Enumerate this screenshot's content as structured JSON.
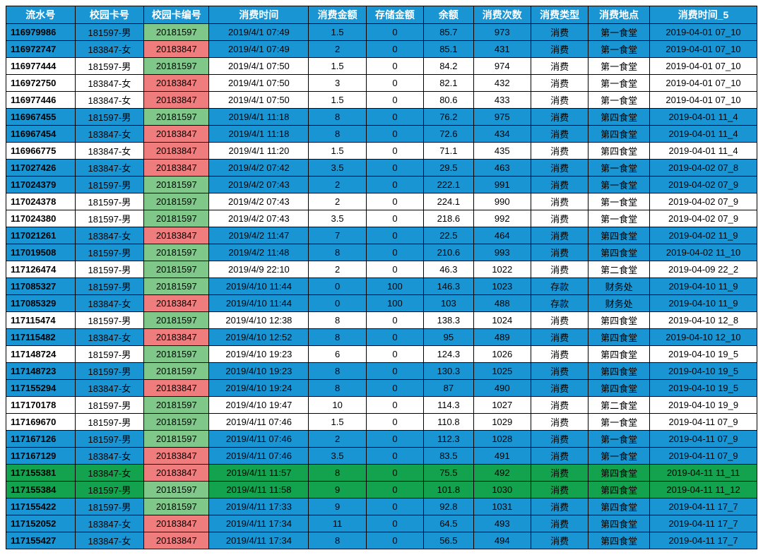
{
  "table": {
    "columns": [
      "流水号",
      "校园卡号",
      "校园卡编号",
      "消费时间",
      "消费金额",
      "存储金额",
      "余额",
      "消费次数",
      "消费类型",
      "消费地点",
      "消费时间_5"
    ],
    "header_bg": "#1995d3",
    "header_fg": "#ffffff",
    "row_bg_colors": {
      "blue": "#1995d3",
      "white": "#ffffff",
      "green": "#13a24d"
    },
    "cell_card_colors": {
      "green": "#7fc88a",
      "red": "#f07d7d"
    },
    "rows": [
      {
        "bg": "blue",
        "card_color": "green",
        "cells": [
          "116979986",
          "181597-男",
          "20181597",
          "2019/4/1 07:49",
          "1.5",
          "0",
          "85.7",
          "973",
          "消费",
          "第一食堂",
          "2019-04-01 07_10"
        ]
      },
      {
        "bg": "blue",
        "card_color": "red",
        "cells": [
          "116972747",
          "183847-女",
          "20183847",
          "2019/4/1 07:49",
          "2",
          "0",
          "85.1",
          "431",
          "消费",
          "第一食堂",
          "2019-04-01 07_10"
        ]
      },
      {
        "bg": "white",
        "card_color": "green",
        "cells": [
          "116977444",
          "181597-男",
          "20181597",
          "2019/4/1 07:50",
          "1.5",
          "0",
          "84.2",
          "974",
          "消费",
          "第一食堂",
          "2019-04-01 07_10"
        ]
      },
      {
        "bg": "white",
        "card_color": "red",
        "cells": [
          "116972750",
          "183847-女",
          "20183847",
          "2019/4/1 07:50",
          "3",
          "0",
          "82.1",
          "432",
          "消费",
          "第一食堂",
          "2019-04-01 07_10"
        ]
      },
      {
        "bg": "white",
        "card_color": "red",
        "cells": [
          "116977446",
          "183847-女",
          "20183847",
          "2019/4/1 07:50",
          "1.5",
          "0",
          "80.6",
          "433",
          "消费",
          "第一食堂",
          "2019-04-01 07_10"
        ]
      },
      {
        "bg": "blue",
        "card_color": "green",
        "cells": [
          "116967455",
          "181597-男",
          "20181597",
          "2019/4/1 11:18",
          "8",
          "0",
          "76.2",
          "975",
          "消费",
          "第四食堂",
          "2019-04-01 11_4"
        ]
      },
      {
        "bg": "blue",
        "card_color": "red",
        "cells": [
          "116967454",
          "183847-女",
          "20183847",
          "2019/4/1 11:18",
          "8",
          "0",
          "72.6",
          "434",
          "消费",
          "第四食堂",
          "2019-04-01 11_4"
        ]
      },
      {
        "bg": "white",
        "card_color": "red",
        "cells": [
          "116966775",
          "183847-女",
          "20183847",
          "2019/4/1 11:20",
          "1.5",
          "0",
          "71.1",
          "435",
          "消费",
          "第四食堂",
          "2019-04-01 11_4"
        ]
      },
      {
        "bg": "blue",
        "card_color": "red",
        "cells": [
          "117027426",
          "183847-女",
          "20183847",
          "2019/4/2 07:42",
          "3.5",
          "0",
          "29.5",
          "463",
          "消费",
          "第一食堂",
          "2019-04-02 07_8"
        ]
      },
      {
        "bg": "blue",
        "card_color": "green",
        "cells": [
          "117024379",
          "181597-男",
          "20181597",
          "2019/4/2 07:43",
          "2",
          "0",
          "222.1",
          "991",
          "消费",
          "第一食堂",
          "2019-04-02 07_9"
        ]
      },
      {
        "bg": "white",
        "card_color": "green",
        "cells": [
          "117024378",
          "181597-男",
          "20181597",
          "2019/4/2 07:43",
          "2",
          "0",
          "224.1",
          "990",
          "消费",
          "第一食堂",
          "2019-04-02 07_9"
        ]
      },
      {
        "bg": "white",
        "card_color": "green",
        "cells": [
          "117024380",
          "181597-男",
          "20181597",
          "2019/4/2 07:43",
          "3.5",
          "0",
          "218.6",
          "992",
          "消费",
          "第一食堂",
          "2019-04-02 07_9"
        ]
      },
      {
        "bg": "blue",
        "card_color": "red",
        "cells": [
          "117021261",
          "183847-女",
          "20183847",
          "2019/4/2 11:47",
          "7",
          "0",
          "22.5",
          "464",
          "消费",
          "第四食堂",
          "2019-04-02 11_9"
        ]
      },
      {
        "bg": "blue",
        "card_color": "green",
        "cells": [
          "117019508",
          "181597-男",
          "20181597",
          "2019/4/2 11:48",
          "8",
          "0",
          "210.6",
          "993",
          "消费",
          "第四食堂",
          "2019-04-02 11_10"
        ]
      },
      {
        "bg": "white",
        "card_color": "green",
        "cells": [
          "117126474",
          "181597-男",
          "20181597",
          "2019/4/9 22:10",
          "2",
          "0",
          "46.3",
          "1022",
          "消费",
          "第二食堂",
          "2019-04-09 22_2"
        ]
      },
      {
        "bg": "blue",
        "card_color": "green",
        "cells": [
          "117085327",
          "181597-男",
          "20181597",
          "2019/4/10 11:44",
          "0",
          "100",
          "146.3",
          "1023",
          "存款",
          "财务处",
          "2019-04-10 11_9"
        ]
      },
      {
        "bg": "blue",
        "card_color": "red",
        "cells": [
          "117085329",
          "183847-女",
          "20183847",
          "2019/4/10 11:44",
          "0",
          "100",
          "103",
          "488",
          "存款",
          "财务处",
          "2019-04-10 11_9"
        ]
      },
      {
        "bg": "white",
        "card_color": "green",
        "cells": [
          "117115474",
          "181597-男",
          "20181597",
          "2019/4/10 12:38",
          "8",
          "0",
          "138.3",
          "1024",
          "消费",
          "第四食堂",
          "2019-04-10 12_8"
        ]
      },
      {
        "bg": "blue",
        "card_color": "red",
        "cells": [
          "117115482",
          "183847-女",
          "20183847",
          "2019/4/10 12:52",
          "8",
          "0",
          "95",
          "489",
          "消费",
          "第四食堂",
          "2019-04-10 12_10"
        ]
      },
      {
        "bg": "white",
        "card_color": "green",
        "cells": [
          "117148724",
          "181597-男",
          "20181597",
          "2019/4/10 19:23",
          "6",
          "0",
          "124.3",
          "1026",
          "消费",
          "第四食堂",
          "2019-04-10 19_5"
        ]
      },
      {
        "bg": "blue",
        "card_color": "green",
        "cells": [
          "117148723",
          "181597-男",
          "20181597",
          "2019/4/10 19:23",
          "8",
          "0",
          "130.3",
          "1025",
          "消费",
          "第四食堂",
          "2019-04-10 19_5"
        ]
      },
      {
        "bg": "blue",
        "card_color": "red",
        "cells": [
          "117155294",
          "183847-女",
          "20183847",
          "2019/4/10 19:24",
          "8",
          "0",
          "87",
          "490",
          "消费",
          "第四食堂",
          "2019-04-10 19_5"
        ]
      },
      {
        "bg": "white",
        "card_color": "green",
        "cells": [
          "117170178",
          "181597-男",
          "20181597",
          "2019/4/10 19:47",
          "10",
          "0",
          "114.3",
          "1027",
          "消费",
          "第二食堂",
          "2019-04-10 19_9"
        ]
      },
      {
        "bg": "white",
        "card_color": "green",
        "cells": [
          "117169670",
          "181597-男",
          "20181597",
          "2019/4/11 07:46",
          "1.5",
          "0",
          "110.8",
          "1029",
          "消费",
          "第一食堂",
          "2019-04-11 07_9"
        ]
      },
      {
        "bg": "blue",
        "card_color": "green",
        "cells": [
          "117167126",
          "181597-男",
          "20181597",
          "2019/4/11 07:46",
          "2",
          "0",
          "112.3",
          "1028",
          "消费",
          "第一食堂",
          "2019-04-11 07_9"
        ]
      },
      {
        "bg": "blue",
        "card_color": "red",
        "cells": [
          "117167129",
          "183847-女",
          "20183847",
          "2019/4/11 07:46",
          "3.5",
          "0",
          "83.5",
          "491",
          "消费",
          "第一食堂",
          "2019-04-11 07_9"
        ]
      },
      {
        "bg": "green",
        "card_color": "red",
        "cells": [
          "117155381",
          "183847-女",
          "20183847",
          "2019/4/11 11:57",
          "8",
          "0",
          "75.5",
          "492",
          "消费",
          "第四食堂",
          "2019-04-11 11_11"
        ]
      },
      {
        "bg": "green",
        "card_color": "green",
        "cells": [
          "117155384",
          "181597-男",
          "20181597",
          "2019/4/11 11:58",
          "9",
          "0",
          "101.8",
          "1030",
          "消费",
          "第四食堂",
          "2019-04-11 11_12"
        ]
      },
      {
        "bg": "blue",
        "card_color": "green",
        "cells": [
          "117155422",
          "181597-男",
          "20181597",
          "2019/4/11 17:33",
          "9",
          "0",
          "92.8",
          "1031",
          "消费",
          "第四食堂",
          "2019-04-11 17_7"
        ]
      },
      {
        "bg": "blue",
        "card_color": "red",
        "cells": [
          "117152052",
          "183847-女",
          "20183847",
          "2019/4/11 17:34",
          "11",
          "0",
          "64.5",
          "493",
          "消费",
          "第四食堂",
          "2019-04-11 17_7"
        ]
      },
      {
        "bg": "blue",
        "card_color": "red",
        "cells": [
          "117155427",
          "183847-女",
          "20183847",
          "2019/4/11 17:34",
          "8",
          "0",
          "56.5",
          "494",
          "消费",
          "第四食堂",
          "2019-04-11 17_7"
        ]
      }
    ]
  }
}
